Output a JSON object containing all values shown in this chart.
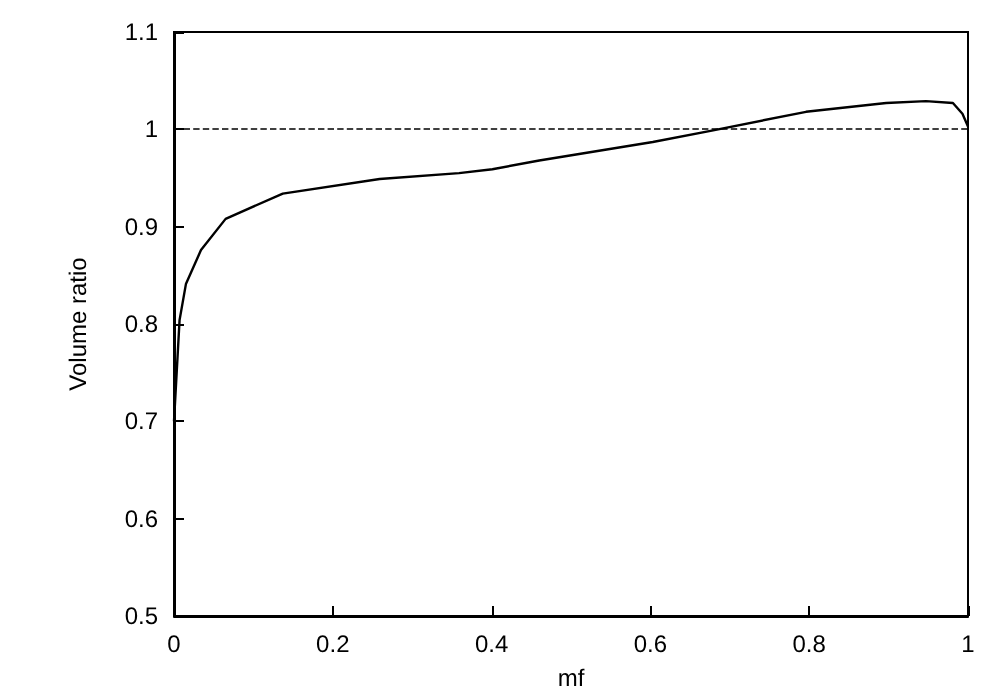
{
  "chart_data": {
    "type": "line",
    "xlabel": "mf",
    "ylabel": "Volume ratio",
    "x": [
      0,
      0.007,
      0.015,
      0.034,
      0.065,
      0.137,
      0.259,
      0.359,
      0.401,
      0.46,
      0.603,
      0.679,
      0.796,
      0.897,
      0.947,
      0.981,
      0.993,
      1.0
    ],
    "series": [
      {
        "color": "#000000",
        "values": [
          0.7,
          0.804,
          0.841,
          0.876,
          0.908,
          0.934,
          0.949,
          0.955,
          0.959,
          0.968,
          0.987,
          0.999,
          1.018,
          1.027,
          1.029,
          1.027,
          1.016,
          1.003
        ]
      }
    ],
    "xlim": [
      0,
      1
    ],
    "xticks": [
      0,
      0.2,
      0.4,
      0.6,
      0.8,
      1
    ],
    "ylim": [
      0.5,
      1.1
    ],
    "yticks": [
      0.5,
      0.6,
      0.7,
      0.8,
      0.9,
      1,
      1.1
    ],
    "ref_lines": [
      {
        "axis": "y",
        "value": 1,
        "color": "#000000",
        "line_style": "dashed"
      }
    ],
    "grid": false,
    "marker": "none",
    "line_style": "solid"
  }
}
